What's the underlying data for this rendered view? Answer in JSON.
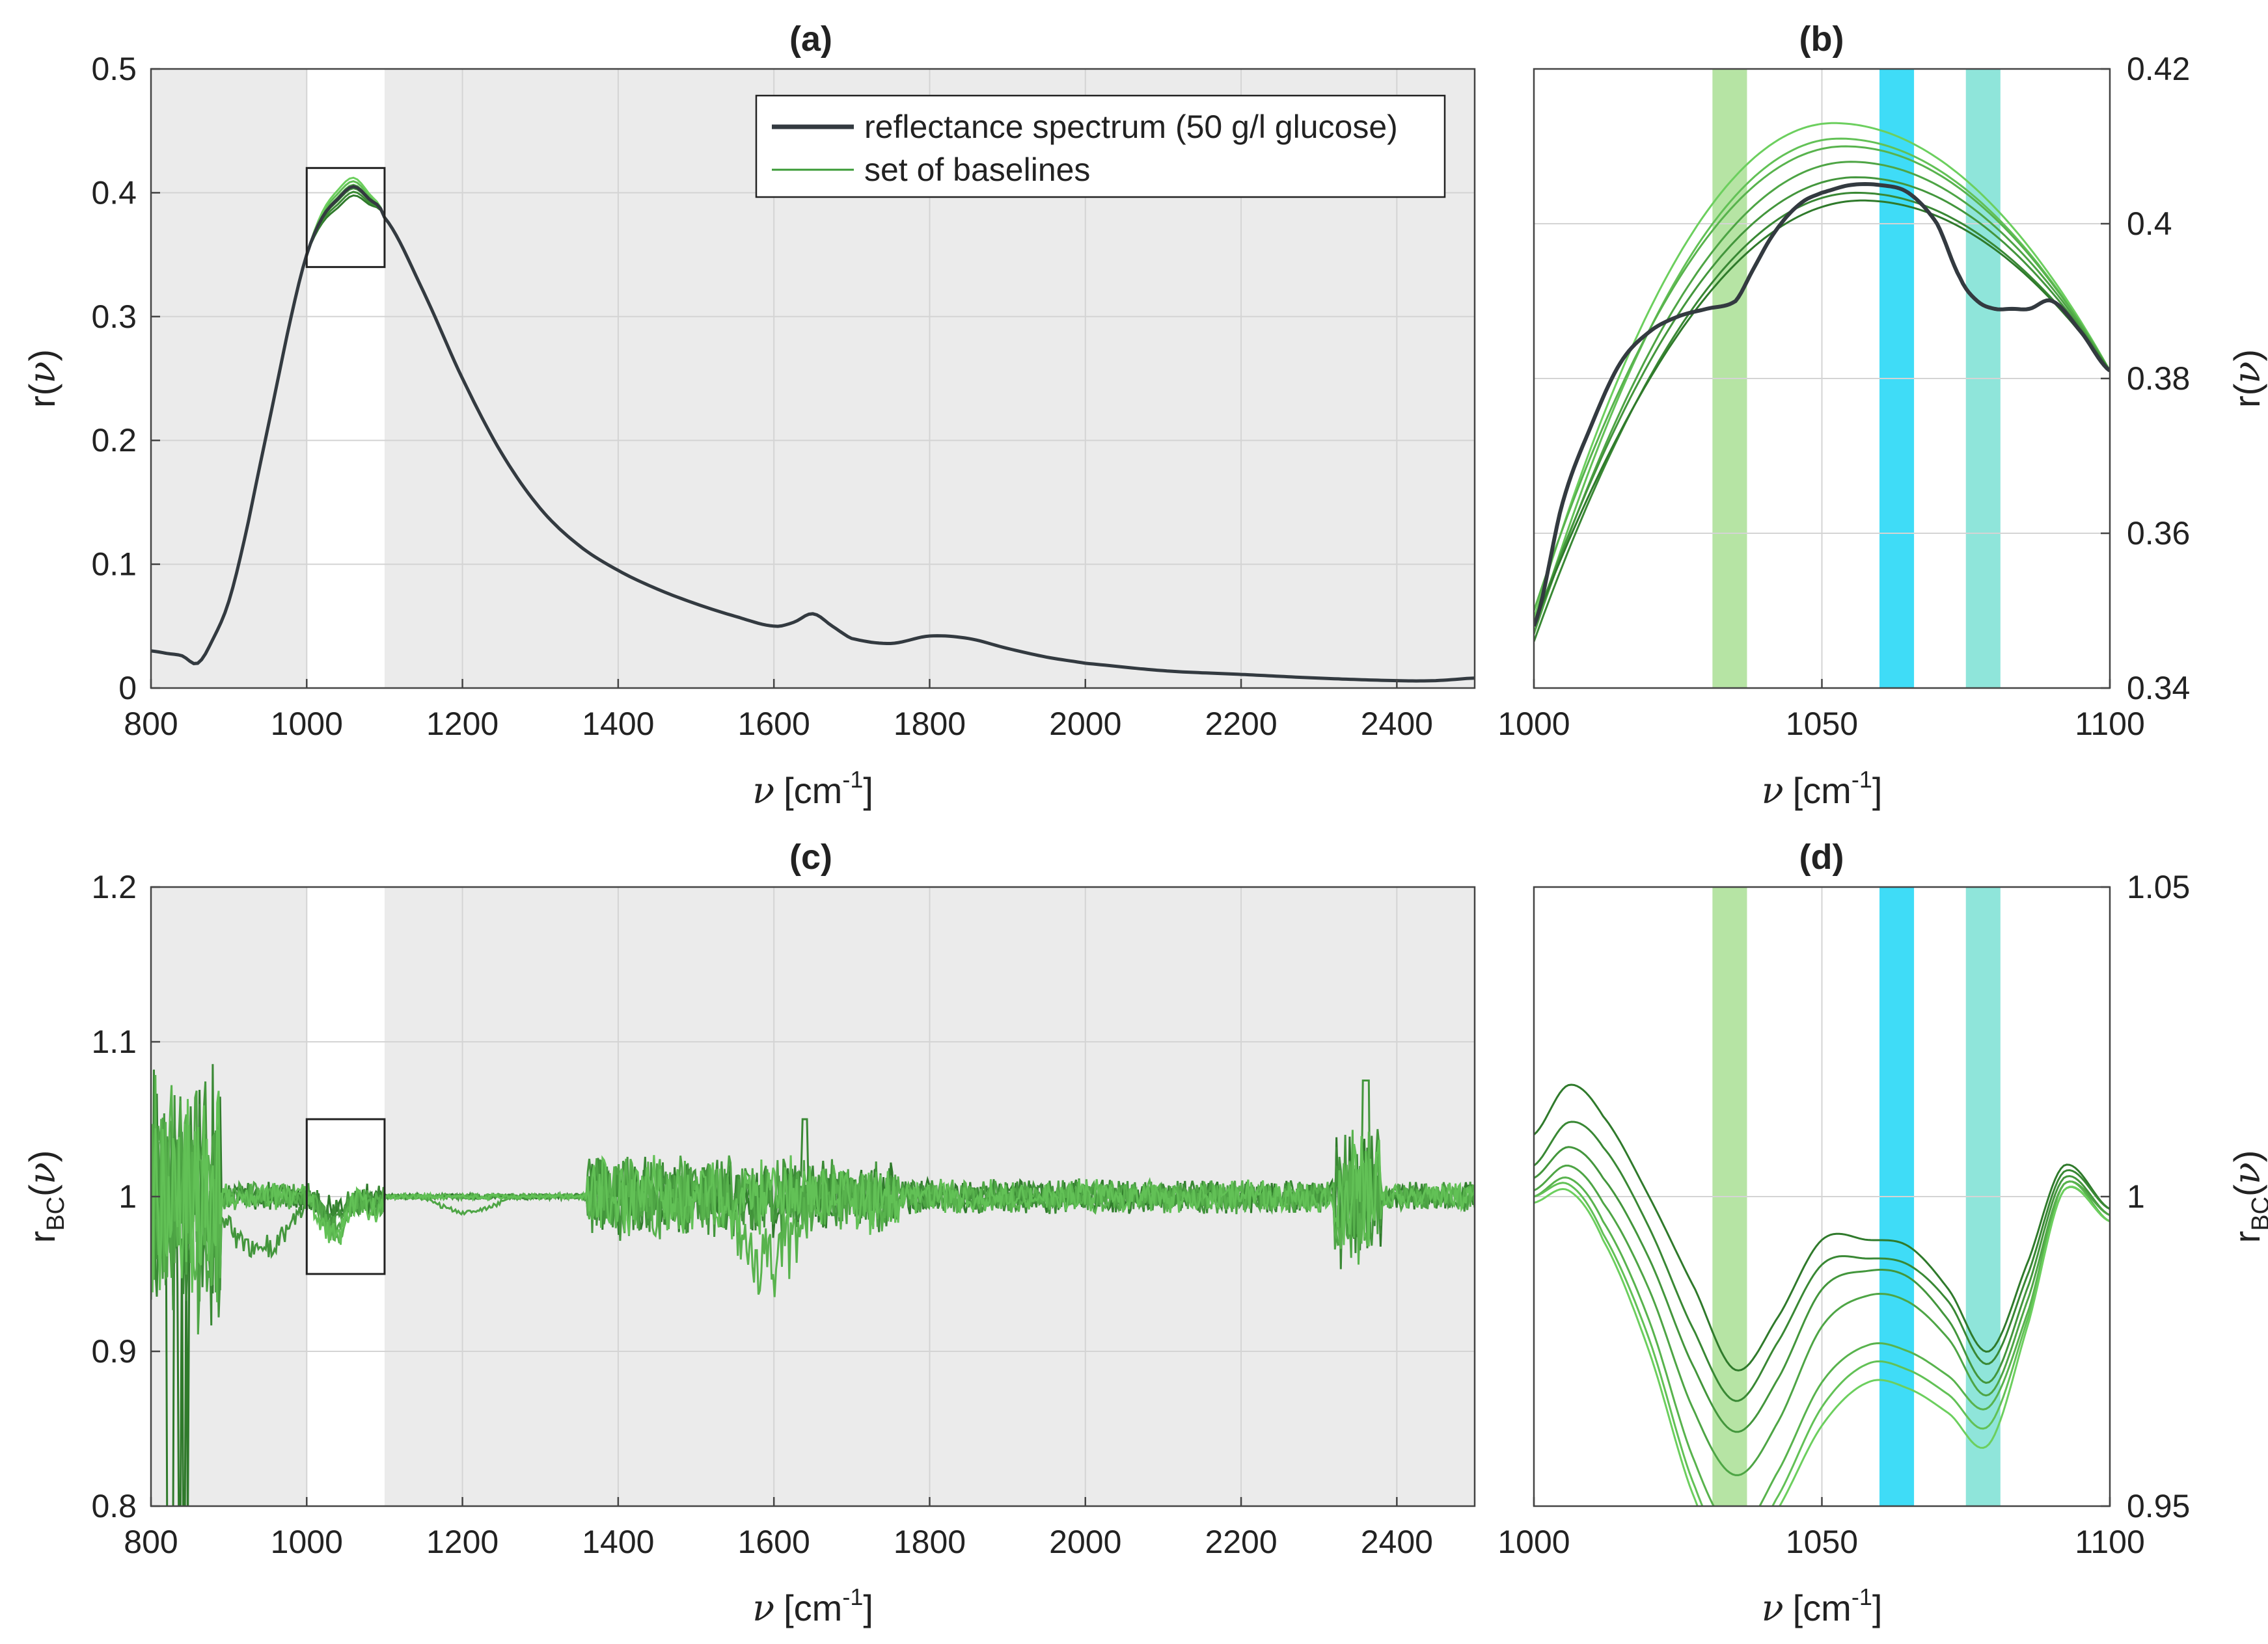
{
  "chart_data": [
    {
      "id": "a",
      "type": "line",
      "title": "(a)",
      "xlabel": "[cm",
      "xlabel_sup": "-1",
      "ylabel": "r(",
      "xlim": [
        800,
        2500
      ],
      "ylim": [
        0,
        0.5
      ],
      "xticks": [
        800,
        1000,
        1200,
        1400,
        1600,
        1800,
        2000,
        2200,
        2400
      ],
      "yticks": [
        0,
        0.1,
        0.2,
        0.3,
        0.4,
        0.5
      ],
      "xtick_labels": [
        "800",
        "1000",
        "1200",
        "1400",
        "1600",
        "1800",
        "2000",
        "2200",
        "2400"
      ],
      "ytick_labels": [
        "0",
        "0.1",
        "0.2",
        "0.3",
        "0.4",
        "0.5"
      ],
      "grid": true,
      "highlight_region": [
        1000,
        1100
      ],
      "zoom_box": {
        "x": [
          1000,
          1100
        ],
        "y": [
          0.34,
          0.42
        ]
      },
      "legend": {
        "position": "top-right",
        "entries": [
          {
            "label": "reflectance spectrum (50 g/l glucose)",
            "color": "#333a40"
          },
          {
            "label": "set of baselines",
            "color": "#3a9a35"
          }
        ]
      },
      "series": [
        {
          "name": "reflectance spectrum (50 g/l glucose)",
          "x": [
            800,
            820,
            840,
            860,
            880,
            900,
            920,
            940,
            960,
            980,
            1000,
            1020,
            1040,
            1060,
            1080,
            1100,
            1150,
            1200,
            1250,
            1300,
            1350,
            1400,
            1450,
            1500,
            1550,
            1600,
            1625,
            1650,
            1675,
            1700,
            1750,
            1800,
            1850,
            1900,
            1950,
            2000,
            2100,
            2200,
            2300,
            2400,
            2450,
            2500
          ],
          "y": [
            0.03,
            0.028,
            0.026,
            0.02,
            0.04,
            0.07,
            0.12,
            0.18,
            0.24,
            0.3,
            0.35,
            0.38,
            0.395,
            0.405,
            0.395,
            0.38,
            0.32,
            0.25,
            0.19,
            0.145,
            0.115,
            0.095,
            0.08,
            0.068,
            0.058,
            0.05,
            0.053,
            0.06,
            0.05,
            0.04,
            0.036,
            0.042,
            0.04,
            0.032,
            0.025,
            0.02,
            0.014,
            0.011,
            0.008,
            0.006,
            0.006,
            0.008
          ]
        }
      ]
    },
    {
      "id": "b",
      "type": "line",
      "title": "(b)",
      "xlabel": "[cm",
      "xlabel_sup": "-1",
      "ylabel": "r(",
      "xlim": [
        1000,
        1100
      ],
      "ylim": [
        0.34,
        0.42
      ],
      "xticks": [
        1000,
        1050,
        1100
      ],
      "yticks": [
        0.34,
        0.36,
        0.38,
        0.4,
        0.42
      ],
      "xtick_labels": [
        "1000",
        "1050",
        "1100"
      ],
      "ytick_labels": [
        "0.34",
        "0.36",
        "0.38",
        "0.4",
        "0.42"
      ],
      "grid": true,
      "bands": [
        {
          "x": [
            1031,
            1037
          ],
          "color": "#b6e4a4"
        },
        {
          "x": [
            1060,
            1066
          ],
          "color": "#3fdcf7"
        },
        {
          "x": [
            1075,
            1081
          ],
          "color": "#8fe5da"
        }
      ],
      "spectrum": {
        "x": [
          1000,
          1005,
          1010,
          1015,
          1020,
          1025,
          1030,
          1035,
          1038,
          1041,
          1044,
          1047,
          1050,
          1055,
          1060,
          1065,
          1070,
          1074,
          1077,
          1080,
          1083,
          1086,
          1090,
          1095,
          1100
        ],
        "y": [
          0.348,
          0.364,
          0.374,
          0.382,
          0.386,
          0.388,
          0.389,
          0.39,
          0.394,
          0.398,
          0.401,
          0.403,
          0.404,
          0.405,
          0.405,
          0.404,
          0.4,
          0.393,
          0.39,
          0.389,
          0.389,
          0.389,
          0.39,
          0.386,
          0.381
        ]
      },
      "baselines_peak_x": [
        1052,
        1053,
        1054,
        1055,
        1056,
        1056,
        1057
      ],
      "baselines_peak_y": [
        0.413,
        0.411,
        0.41,
        0.408,
        0.406,
        0.404,
        0.403
      ],
      "baselines_start_y": [
        0.349,
        0.347,
        0.35,
        0.347,
        0.348,
        0.346,
        0.348
      ],
      "baselines_end_y": 0.381
    },
    {
      "id": "c",
      "type": "line",
      "title": "(c)",
      "xlabel": "[cm",
      "xlabel_sup": "-1",
      "ylabel": "r",
      "ylabel_sub": "BC",
      "ylabel_tail": "(",
      "xlim": [
        800,
        2500
      ],
      "ylim": [
        0.8,
        1.2
      ],
      "xticks": [
        800,
        1000,
        1200,
        1400,
        1600,
        1800,
        2000,
        2200,
        2400
      ],
      "yticks": [
        0.8,
        0.9,
        1.0,
        1.1,
        1.2
      ],
      "xtick_labels": [
        "800",
        "1000",
        "1200",
        "1400",
        "1600",
        "1800",
        "2000",
        "2200",
        "2400"
      ],
      "ytick_labels": [
        "0.8",
        "0.9",
        "1",
        "1.1",
        "1.2"
      ],
      "grid": true,
      "highlight_region": [
        1000,
        1100
      ],
      "zoom_box": {
        "x": [
          1000,
          1100
        ],
        "y": [
          0.95,
          1.05
        ]
      },
      "baseline_value": 1.0
    },
    {
      "id": "d",
      "type": "line",
      "title": "(d)",
      "xlabel": "[cm",
      "xlabel_sup": "-1",
      "ylabel": "r",
      "ylabel_sub": "BC",
      "ylabel_tail": "(",
      "xlim": [
        1000,
        1100
      ],
      "ylim": [
        0.95,
        1.05
      ],
      "xticks": [
        1000,
        1050,
        1100
      ],
      "yticks": [
        0.95,
        1.0,
        1.05
      ],
      "xtick_labels": [
        "1000",
        "1050",
        "1100"
      ],
      "ytick_labels": [
        "0.95",
        "1",
        "1.05"
      ],
      "grid": true,
      "bands": [
        {
          "x": [
            1031,
            1037
          ],
          "color": "#b6e4a4"
        },
        {
          "x": [
            1060,
            1066
          ],
          "color": "#3fdcf7"
        },
        {
          "x": [
            1075,
            1081
          ],
          "color": "#8fe5da"
        }
      ],
      "curves_x": [
        1000,
        1006,
        1012,
        1020,
        1028,
        1035,
        1042,
        1050,
        1058,
        1065,
        1072,
        1079,
        1086,
        1092,
        1100
      ],
      "curves_y": [
        [
          1.01,
          1.018,
          1.013,
          1.0,
          0.985,
          0.972,
          0.98,
          0.993,
          0.993,
          0.992,
          0.985,
          0.975,
          0.99,
          1.005,
          0.998
        ],
        [
          1.005,
          1.012,
          1.008,
          0.995,
          0.978,
          0.967,
          0.976,
          0.989,
          0.99,
          0.989,
          0.983,
          0.973,
          0.988,
          1.004,
          0.998
        ],
        [
          1.003,
          1.008,
          1.003,
          0.99,
          0.972,
          0.962,
          0.97,
          0.985,
          0.988,
          0.987,
          0.98,
          0.97,
          0.986,
          1.003,
          0.997
        ],
        [
          1.001,
          1.005,
          0.999,
          0.985,
          0.965,
          0.955,
          0.963,
          0.979,
          0.984,
          0.983,
          0.977,
          0.968,
          0.984,
          1.002,
          0.997
        ],
        [
          1.0,
          1.003,
          0.996,
          0.98,
          0.957,
          0.946,
          0.955,
          0.97,
          0.976,
          0.975,
          0.971,
          0.966,
          0.982,
          1.002,
          0.996
        ],
        [
          1.0,
          1.002,
          0.994,
          0.977,
          0.953,
          0.942,
          0.951,
          0.966,
          0.973,
          0.972,
          0.968,
          0.963,
          0.981,
          1.001,
          0.996
        ],
        [
          0.999,
          1.001,
          0.993,
          0.975,
          0.951,
          0.94,
          0.949,
          0.963,
          0.97,
          0.969,
          0.965,
          0.96,
          0.98,
          1.001,
          0.996
        ]
      ]
    }
  ],
  "colors": {
    "panel_bg": "#ebebeb",
    "highlight_bg": "#ffffff",
    "spectrum": "#333a40",
    "baseline_dark": "#2f7a2b",
    "baseline_light": "#6ccf5e",
    "grid": "#d4d4d4"
  }
}
